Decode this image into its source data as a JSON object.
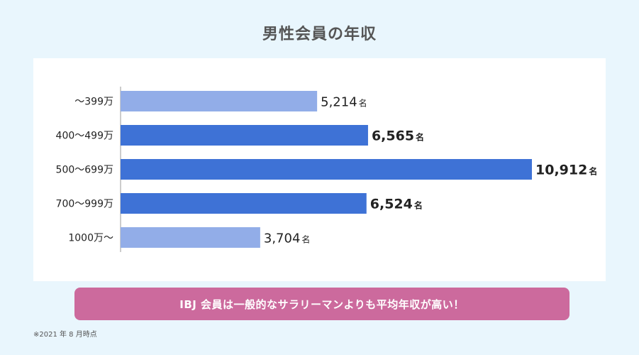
{
  "chart_data": {
    "type": "bar",
    "orientation": "horizontal",
    "title": "男性会員の年収",
    "categories": [
      "～399万",
      "400～499万",
      "500～699万",
      "700～999万",
      "1000万～"
    ],
    "values": [
      5214,
      6565,
      10912,
      6524,
      3704
    ],
    "value_labels": [
      "5,214",
      "6,565",
      "10,912",
      "6,524",
      "3,704"
    ],
    "unit": "名",
    "highlighted": [
      false,
      true,
      true,
      true,
      false
    ],
    "xlim": [
      0,
      10912
    ],
    "grid": false,
    "colors": {
      "highlight_bar": "#3e72d6",
      "normal_bar": "#92ade8",
      "axis": "#999999",
      "text": "#222222"
    }
  },
  "banner": {
    "text": "IBJ 会員は一般的なサラリーマンよりも平均年収が高い！"
  },
  "footnote": "※2021 年 8 月時点"
}
